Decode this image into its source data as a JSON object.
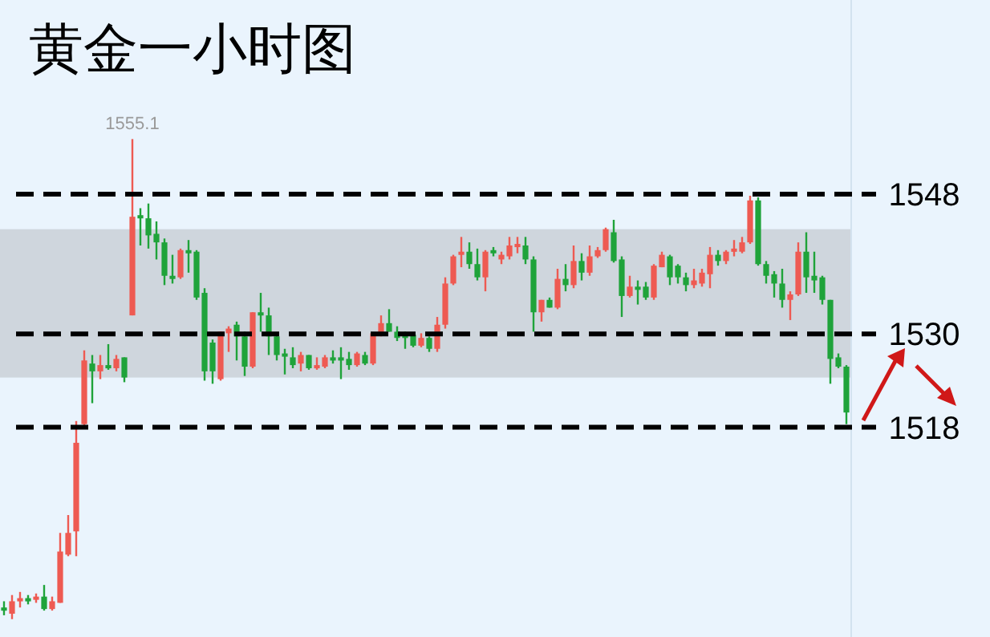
{
  "chart_data": {
    "type": "candlestick",
    "title": "黄金一小时图",
    "categories": [
      null,
      null,
      null,
      null,
      null,
      null,
      null,
      null,
      null,
      null,
      null,
      null,
      null,
      null,
      null,
      null,
      null,
      null,
      null,
      null,
      null,
      null,
      null,
      null,
      null,
      null,
      null,
      null,
      null,
      null,
      null,
      null,
      null,
      null,
      null,
      null,
      null,
      null,
      null,
      null,
      null,
      null,
      null,
      null,
      null,
      null,
      null,
      null,
      null,
      null,
      null,
      null,
      null,
      null,
      null,
      null,
      null,
      null,
      null,
      null,
      null,
      null,
      null,
      null,
      null,
      null,
      null,
      null,
      null,
      null,
      null,
      null,
      null,
      null,
      null,
      null,
      null,
      null,
      null,
      null,
      null,
      null,
      null,
      null,
      null,
      null,
      null,
      null,
      null,
      null,
      null,
      null,
      null,
      null,
      null,
      null,
      null,
      null,
      null,
      null,
      null,
      null,
      null,
      null,
      null,
      null
    ],
    "ohlc": [
      [
        1494.8,
        1495.6,
        1493.8,
        1494.4
      ],
      [
        1494.0,
        1496.4,
        1493.3,
        1495.6
      ],
      [
        1495.8,
        1496.8,
        1494.8,
        1496.0
      ],
      [
        1496.0,
        1496.4,
        1495.2,
        1495.8
      ],
      [
        1495.8,
        1496.6,
        1495.4,
        1496.2
      ],
      [
        1496.2,
        1497.7,
        1494.4,
        1494.6
      ],
      [
        1494.6,
        1496.2,
        1494.4,
        1495.6
      ],
      [
        1495.4,
        1504.4,
        1495.4,
        1502.0
      ],
      [
        1501.6,
        1506.7,
        1501.4,
        1504.4
      ],
      [
        1504.6,
        1518.8,
        1501.4,
        1516.0
      ],
      [
        1518.4,
        1527.9,
        1518.0,
        1526.6
      ],
      [
        1526.2,
        1527.3,
        1521.1,
        1525.2
      ],
      [
        1525.2,
        1527.3,
        1524.2,
        1526.0
      ],
      [
        1526.0,
        1528.7,
        1525.4,
        1525.6
      ],
      [
        1525.6,
        1527.3,
        1525.2,
        1526.8
      ],
      [
        1527.0,
        1527.0,
        1523.8,
        1524.4
      ],
      [
        1532.4,
        1555.1,
        1532.4,
        1545.1
      ],
      [
        1545.3,
        1546.2,
        1541.4,
        1544.9
      ],
      [
        1544.9,
        1546.8,
        1541.0,
        1542.7
      ],
      [
        1542.9,
        1544.5,
        1539.6,
        1541.8
      ],
      [
        1541.8,
        1542.3,
        1536.3,
        1537.5
      ],
      [
        1537.5,
        1540.2,
        1536.5,
        1537.1
      ],
      [
        1537.3,
        1541.0,
        1537.1,
        1540.8
      ],
      [
        1540.8,
        1542.1,
        1537.9,
        1540.4
      ],
      [
        1540.6,
        1540.8,
        1534.4,
        1534.7
      ],
      [
        1535.3,
        1535.9,
        1524.0,
        1525.2
      ],
      [
        1528.9,
        1529.3,
        1523.6,
        1525.2
      ],
      [
        1524.2,
        1530.3,
        1524.0,
        1530.3
      ],
      [
        1530.1,
        1531.0,
        1527.7,
        1530.7
      ],
      [
        1531.2,
        1531.6,
        1526.6,
        1529.7
      ],
      [
        1529.7,
        1530.3,
        1524.6,
        1525.8
      ],
      [
        1525.8,
        1532.8,
        1525.6,
        1532.8
      ],
      [
        1532.8,
        1535.3,
        1530.3,
        1532.4
      ],
      [
        1532.4,
        1533.4,
        1527.3,
        1529.7
      ],
      [
        1529.7,
        1530.1,
        1526.6,
        1527.3
      ],
      [
        1527.5,
        1528.1,
        1524.8,
        1527.3
      ],
      [
        1527.0,
        1528.3,
        1525.6,
        1526.0
      ],
      [
        1526.2,
        1527.7,
        1525.2,
        1527.3
      ],
      [
        1527.3,
        1527.3,
        1525.4,
        1525.6
      ],
      [
        1525.8,
        1527.0,
        1525.4,
        1526.0
      ],
      [
        1525.8,
        1527.3,
        1525.6,
        1527.0
      ],
      [
        1527.0,
        1527.9,
        1526.2,
        1526.6
      ],
      [
        1527.0,
        1528.3,
        1524.2,
        1526.8
      ],
      [
        1526.8,
        1527.7,
        1525.4,
        1526.0
      ],
      [
        1526.0,
        1527.7,
        1525.8,
        1527.5
      ],
      [
        1527.3,
        1527.7,
        1526.0,
        1526.2
      ],
      [
        1526.2,
        1530.1,
        1526.0,
        1530.1
      ],
      [
        1529.9,
        1532.4,
        1529.7,
        1531.4
      ],
      [
        1531.4,
        1533.2,
        1530.3,
        1530.3
      ],
      [
        1530.3,
        1531.0,
        1529.1,
        1529.5
      ],
      [
        1529.9,
        1530.3,
        1528.1,
        1529.5
      ],
      [
        1529.9,
        1530.1,
        1528.3,
        1528.5
      ],
      [
        1528.5,
        1530.1,
        1528.3,
        1529.5
      ],
      [
        1529.5,
        1529.7,
        1527.7,
        1528.1
      ],
      [
        1528.1,
        1532.2,
        1527.7,
        1531.2
      ],
      [
        1531.2,
        1537.3,
        1530.7,
        1536.5
      ],
      [
        1536.5,
        1540.2,
        1536.3,
        1540.0
      ],
      [
        1540.4,
        1542.5,
        1538.6,
        1540.6
      ],
      [
        1540.6,
        1541.8,
        1538.4,
        1539.0
      ],
      [
        1539.0,
        1541.0,
        1536.9,
        1537.3
      ],
      [
        1537.3,
        1540.8,
        1535.5,
        1540.6
      ],
      [
        1540.8,
        1541.2,
        1540.0,
        1540.4
      ],
      [
        1539.6,
        1540.6,
        1539.0,
        1540.2
      ],
      [
        1540.0,
        1542.5,
        1539.6,
        1541.4
      ],
      [
        1541.4,
        1542.5,
        1540.4,
        1541.6
      ],
      [
        1541.4,
        1542.5,
        1539.0,
        1539.6
      ],
      [
        1539.6,
        1540.0,
        1530.3,
        1532.8
      ],
      [
        1532.8,
        1534.4,
        1531.6,
        1534.4
      ],
      [
        1534.4,
        1534.7,
        1533.4,
        1533.4
      ],
      [
        1533.4,
        1538.4,
        1533.2,
        1537.1
      ],
      [
        1537.1,
        1539.0,
        1535.5,
        1536.3
      ],
      [
        1536.3,
        1541.4,
        1535.9,
        1539.4
      ],
      [
        1539.4,
        1540.4,
        1536.9,
        1537.9
      ],
      [
        1537.9,
        1541.4,
        1537.5,
        1540.0
      ],
      [
        1540.0,
        1541.2,
        1539.8,
        1540.8
      ],
      [
        1540.8,
        1543.7,
        1540.6,
        1543.5
      ],
      [
        1543.1,
        1544.7,
        1539.2,
        1539.4
      ],
      [
        1539.6,
        1540.0,
        1532.2,
        1534.9
      ],
      [
        1534.9,
        1537.5,
        1534.7,
        1536.1
      ],
      [
        1536.1,
        1536.9,
        1533.8,
        1535.7
      ],
      [
        1536.1,
        1536.7,
        1534.4,
        1534.7
      ],
      [
        1534.7,
        1539.0,
        1534.4,
        1538.8
      ],
      [
        1538.6,
        1540.6,
        1538.6,
        1540.2
      ],
      [
        1540.0,
        1540.2,
        1536.3,
        1537.3
      ],
      [
        1538.8,
        1539.0,
        1536.5,
        1537.3
      ],
      [
        1537.3,
        1537.9,
        1535.5,
        1536.3
      ],
      [
        1536.3,
        1538.4,
        1535.9,
        1536.9
      ],
      [
        1536.5,
        1538.4,
        1536.1,
        1537.9
      ],
      [
        1537.7,
        1541.2,
        1535.9,
        1540.2
      ],
      [
        1540.2,
        1540.8,
        1538.8,
        1539.4
      ],
      [
        1539.4,
        1540.8,
        1539.0,
        1540.6
      ],
      [
        1540.6,
        1542.1,
        1540.0,
        1541.0
      ],
      [
        1540.6,
        1542.5,
        1540.4,
        1541.8
      ],
      [
        1541.8,
        1547.8,
        1541.6,
        1547.2
      ],
      [
        1547.2,
        1547.6,
        1538.8,
        1539.0
      ],
      [
        1539.0,
        1539.4,
        1536.5,
        1537.5
      ],
      [
        1537.7,
        1538.1,
        1534.7,
        1536.5
      ],
      [
        1536.5,
        1538.4,
        1533.4,
        1534.4
      ],
      [
        1534.4,
        1535.5,
        1531.8,
        1535.1
      ],
      [
        1535.1,
        1541.8,
        1534.9,
        1540.6
      ],
      [
        1540.6,
        1543.1,
        1535.3,
        1537.3
      ],
      [
        1537.5,
        1540.6,
        1535.3,
        1536.9
      ],
      [
        1537.3,
        1537.5,
        1533.8,
        1534.4
      ],
      [
        1534.4,
        1534.4,
        1523.6,
        1526.8
      ],
      [
        1527.0,
        1527.5,
        1525.6,
        1525.8
      ],
      [
        1525.8,
        1526.0,
        1518.4,
        1519.9
      ]
    ],
    "colors": [
      "#1fa33a",
      "#ee5a52",
      "#ee5a52",
      "#1fa33a",
      "#ee5a52",
      "#1fa33a",
      "#ee5a52",
      "#ee5a52",
      "#ee5a52",
      "#ee5a52",
      "#ee5a52",
      "#1fa33a",
      "#ee5a52",
      "#1fa33a",
      "#ee5a52",
      "#1fa33a",
      "#ee5a52",
      "#1fa33a",
      "#1fa33a",
      "#1fa33a",
      "#1fa33a",
      "#1fa33a",
      "#ee5a52",
      "#1fa33a",
      "#1fa33a",
      "#1fa33a",
      "#1fa33a",
      "#ee5a52",
      "#ee5a52",
      "#1fa33a",
      "#1fa33a",
      "#ee5a52",
      "#1fa33a",
      "#1fa33a",
      "#1fa33a",
      "#1fa33a",
      "#1fa33a",
      "#ee5a52",
      "#1fa33a",
      "#ee5a52",
      "#ee5a52",
      "#1fa33a",
      "#1fa33a",
      "#1fa33a",
      "#ee5a52",
      "#1fa33a",
      "#ee5a52",
      "#ee5a52",
      "#1fa33a",
      "#1fa33a",
      "#1fa33a",
      "#1fa33a",
      "#ee5a52",
      "#1fa33a",
      "#ee5a52",
      "#ee5a52",
      "#ee5a52",
      "#ee5a52",
      "#1fa33a",
      "#1fa33a",
      "#ee5a52",
      "#1fa33a",
      "#ee5a52",
      "#ee5a52",
      "#ee5a52",
      "#1fa33a",
      "#1fa33a",
      "#ee5a52",
      "#1fa33a",
      "#ee5a52",
      "#1fa33a",
      "#ee5a52",
      "#1fa33a",
      "#ee5a52",
      "#ee5a52",
      "#ee5a52",
      "#1fa33a",
      "#1fa33a",
      "#ee5a52",
      "#1fa33a",
      "#1fa33a",
      "#ee5a52",
      "#ee5a52",
      "#1fa33a",
      "#1fa33a",
      "#1fa33a",
      "#ee5a52",
      "#ee5a52",
      "#ee5a52",
      "#1fa33a",
      "#ee5a52",
      "#ee5a52",
      "#ee5a52",
      "#ee5a52",
      "#1fa33a",
      "#1fa33a",
      "#1fa33a",
      "#1fa33a",
      "#ee5a52",
      "#ee5a52",
      "#1fa33a",
      "#1fa33a",
      "#1fa33a",
      "#1fa33a",
      "#1fa33a",
      "#1fa33a"
    ],
    "ylim": [
      1491,
      1573
    ],
    "yticks": [
      1518,
      1530,
      1548
    ],
    "ref_lines": [
      {
        "axis": "y",
        "value": 1548,
        "color": "#000000",
        "line_style": "dashed"
      },
      {
        "axis": "y",
        "value": 1530,
        "color": "#000000",
        "line_style": "dashed"
      },
      {
        "axis": "y",
        "value": 1518,
        "color": "#000000",
        "line_style": "dashed"
      }
    ],
    "bands": [
      {
        "axis": "y",
        "from": 1524.4,
        "to": 1535.9,
        "color": "#cfd6dd"
      },
      {
        "axis": "y",
        "from": 1531.2,
        "to": 1543.5,
        "color": "#cfd6dd"
      }
    ],
    "annotations": [
      "1555.1"
    ]
  }
}
